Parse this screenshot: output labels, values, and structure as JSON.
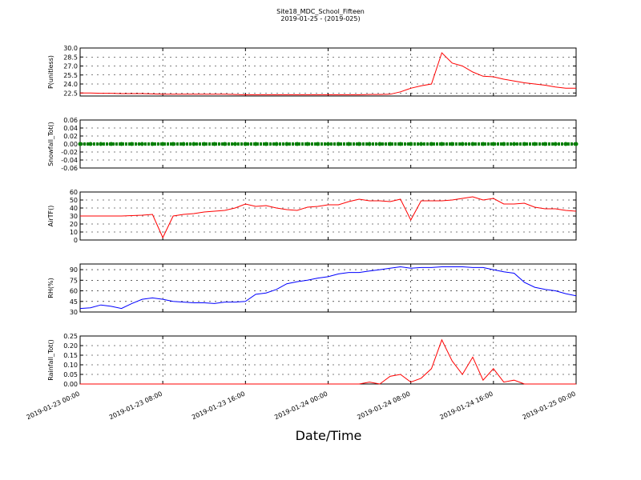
{
  "title": "Site18_MDC_School_Fifteen",
  "subtitle": "2019-01-25 - (2019-025)",
  "xlabel": "Date/Time",
  "chart_data": [
    {
      "type": "line",
      "ylabel": "P(unitless)",
      "color": "#ff0000",
      "ylim": [
        22,
        30
      ],
      "yticks": [
        22.5,
        {
          "value": 24,
          "label": "24.0"
        },
        25.5,
        {
          "value": 27,
          "label": "27.0"
        },
        28.5,
        {
          "value": 30,
          "label": "30.0"
        }
      ],
      "xlim": [
        "2019-01-23 00:00",
        "2019-01-25 00:00"
      ],
      "xticks": [
        "2019-01-23 00:00",
        "2019-01-23 08:00",
        "2019-01-23 16:00",
        "2019-01-24 00:00",
        "2019-01-24 08:00",
        "2019-01-24 16:00",
        "2019-01-25 00:00"
      ],
      "grid": true,
      "x": [
        "2019-01-23 00:00",
        "2019-01-23 01:00",
        "2019-01-23 02:00",
        "2019-01-23 03:00",
        "2019-01-23 04:00",
        "2019-01-23 05:00",
        "2019-01-23 06:00",
        "2019-01-23 07:00",
        "2019-01-23 08:00",
        "2019-01-23 09:00",
        "2019-01-23 10:00",
        "2019-01-23 11:00",
        "2019-01-23 12:00",
        "2019-01-23 13:00",
        "2019-01-23 14:00",
        "2019-01-23 15:00",
        "2019-01-23 16:00",
        "2019-01-23 17:00",
        "2019-01-23 18:00",
        "2019-01-23 19:00",
        "2019-01-23 20:00",
        "2019-01-23 21:00",
        "2019-01-23 22:00",
        "2019-01-23 23:00",
        "2019-01-24 00:00",
        "2019-01-24 01:00",
        "2019-01-24 02:00",
        "2019-01-24 03:00",
        "2019-01-24 04:00",
        "2019-01-24 05:00",
        "2019-01-24 06:00",
        "2019-01-24 07:00",
        "2019-01-24 08:00",
        "2019-01-24 09:00",
        "2019-01-24 10:00",
        "2019-01-24 11:00",
        "2019-01-24 12:00",
        "2019-01-24 13:00",
        "2019-01-24 14:00",
        "2019-01-24 15:00",
        "2019-01-24 16:00",
        "2019-01-24 17:00",
        "2019-01-24 18:00",
        "2019-01-24 19:00",
        "2019-01-24 20:00",
        "2019-01-24 21:00",
        "2019-01-24 22:00",
        "2019-01-24 23:00",
        "2019-01-25 00:00"
      ],
      "values": [
        22.5,
        22.5,
        22.45,
        22.45,
        22.4,
        22.4,
        22.4,
        22.35,
        22.3,
        22.3,
        22.3,
        22.3,
        22.3,
        22.3,
        22.3,
        22.25,
        22.2,
        22.2,
        22.2,
        22.2,
        22.2,
        22.2,
        22.2,
        22.2,
        22.2,
        22.2,
        22.2,
        22.2,
        22.25,
        22.25,
        22.3,
        22.7,
        23.3,
        23.7,
        24.0,
        29.2,
        27.5,
        27.0,
        26.0,
        25.3,
        25.2,
        24.8,
        24.5,
        24.2,
        24.0,
        23.8,
        23.5,
        23.3,
        23.3
      ]
    },
    {
      "type": "scatter",
      "ylabel": "Snowfall_Tot()",
      "color": "#008000",
      "ylim": [
        -0.06,
        0.06
      ],
      "yticks": [
        -0.06,
        -0.04,
        -0.02,
        {
          "value": 0,
          "label": "0.00"
        },
        0.02,
        0.04,
        0.06
      ],
      "xlim": [
        "2019-01-23 00:00",
        "2019-01-25 00:00"
      ],
      "xticks": [
        "2019-01-23 00:00",
        "2019-01-23 08:00",
        "2019-01-23 16:00",
        "2019-01-24 00:00",
        "2019-01-24 08:00",
        "2019-01-24 16:00",
        "2019-01-25 00:00"
      ],
      "grid": true,
      "x": [
        "2019-01-23 00:00",
        "2019-01-23 01:00",
        "2019-01-23 02:00",
        "2019-01-23 03:00",
        "2019-01-23 04:00",
        "2019-01-23 05:00",
        "2019-01-23 06:00",
        "2019-01-23 07:00",
        "2019-01-23 08:00",
        "2019-01-23 09:00",
        "2019-01-23 10:00",
        "2019-01-23 11:00",
        "2019-01-23 12:00",
        "2019-01-23 13:00",
        "2019-01-23 14:00",
        "2019-01-23 15:00",
        "2019-01-23 16:00",
        "2019-01-23 17:00",
        "2019-01-23 18:00",
        "2019-01-23 19:00",
        "2019-01-23 20:00",
        "2019-01-23 21:00",
        "2019-01-23 22:00",
        "2019-01-23 23:00",
        "2019-01-24 00:00",
        "2019-01-24 01:00",
        "2019-01-24 02:00",
        "2019-01-24 03:00",
        "2019-01-24 04:00",
        "2019-01-24 05:00",
        "2019-01-24 06:00",
        "2019-01-24 07:00",
        "2019-01-24 08:00",
        "2019-01-24 09:00",
        "2019-01-24 10:00",
        "2019-01-24 11:00",
        "2019-01-24 12:00",
        "2019-01-24 13:00",
        "2019-01-24 14:00",
        "2019-01-24 15:00",
        "2019-01-24 16:00",
        "2019-01-24 17:00",
        "2019-01-24 18:00",
        "2019-01-24 19:00",
        "2019-01-24 20:00",
        "2019-01-24 21:00",
        "2019-01-24 22:00",
        "2019-01-24 23:00",
        "2019-01-25 00:00"
      ],
      "values": [
        0,
        0,
        0,
        0,
        0,
        0,
        0,
        0,
        0,
        0,
        0,
        0,
        0,
        0,
        0,
        0,
        0,
        0,
        0,
        0,
        0,
        0,
        0,
        0,
        0,
        0,
        0,
        0,
        0,
        0,
        0,
        0,
        0,
        0,
        0,
        0,
        0,
        0,
        0,
        0,
        0,
        0,
        0,
        0,
        0,
        0,
        0,
        0,
        0
      ]
    },
    {
      "type": "line",
      "ylabel": "AirTF()",
      "color": "#ff0000",
      "ylim": [
        0,
        60
      ],
      "yticks": [
        0,
        10,
        20,
        30,
        40,
        50,
        60
      ],
      "xlim": [
        "2019-01-23 00:00",
        "2019-01-25 00:00"
      ],
      "xticks": [
        "2019-01-23 00:00",
        "2019-01-23 08:00",
        "2019-01-23 16:00",
        "2019-01-24 00:00",
        "2019-01-24 08:00",
        "2019-01-24 16:00",
        "2019-01-25 00:00"
      ],
      "grid": true,
      "x": [
        "2019-01-23 00:00",
        "2019-01-23 01:00",
        "2019-01-23 02:00",
        "2019-01-23 03:00",
        "2019-01-23 04:00",
        "2019-01-23 05:00",
        "2019-01-23 06:00",
        "2019-01-23 07:00",
        "2019-01-23 08:00",
        "2019-01-23 09:00",
        "2019-01-23 10:00",
        "2019-01-23 11:00",
        "2019-01-23 12:00",
        "2019-01-23 13:00",
        "2019-01-23 14:00",
        "2019-01-23 15:00",
        "2019-01-23 16:00",
        "2019-01-23 17:00",
        "2019-01-23 18:00",
        "2019-01-23 19:00",
        "2019-01-23 20:00",
        "2019-01-23 21:00",
        "2019-01-23 22:00",
        "2019-01-23 23:00",
        "2019-01-24 00:00",
        "2019-01-24 01:00",
        "2019-01-24 02:00",
        "2019-01-24 03:00",
        "2019-01-24 04:00",
        "2019-01-24 05:00",
        "2019-01-24 06:00",
        "2019-01-24 07:00",
        "2019-01-24 08:00",
        "2019-01-24 09:00",
        "2019-01-24 10:00",
        "2019-01-24 11:00",
        "2019-01-24 12:00",
        "2019-01-24 13:00",
        "2019-01-24 14:00",
        "2019-01-24 15:00",
        "2019-01-24 16:00",
        "2019-01-24 17:00",
        "2019-01-24 18:00",
        "2019-01-24 19:00",
        "2019-01-24 20:00",
        "2019-01-24 21:00",
        "2019-01-24 22:00",
        "2019-01-24 23:00",
        "2019-01-25 00:00"
      ],
      "values": [
        30,
        30,
        30,
        30,
        30,
        30.5,
        31,
        32,
        3,
        30,
        32,
        33,
        35,
        36,
        37,
        40,
        45,
        42,
        43,
        40,
        38,
        37,
        41,
        42,
        44,
        44,
        48,
        51,
        49,
        49,
        48,
        51,
        25,
        49,
        49,
        49,
        50,
        52,
        54,
        50,
        52,
        45,
        45,
        46,
        41,
        39,
        39,
        37,
        36
      ]
    },
    {
      "type": "line",
      "ylabel": "RH(%)",
      "color": "#0000ff",
      "ylim": [
        30,
        98
      ],
      "yticks": [
        30,
        45,
        60,
        75,
        90
      ],
      "xlim": [
        "2019-01-23 00:00",
        "2019-01-25 00:00"
      ],
      "xticks": [
        "2019-01-23 00:00",
        "2019-01-23 08:00",
        "2019-01-23 16:00",
        "2019-01-24 00:00",
        "2019-01-24 08:00",
        "2019-01-24 16:00",
        "2019-01-25 00:00"
      ],
      "grid": true,
      "x": [
        "2019-01-23 00:00",
        "2019-01-23 01:00",
        "2019-01-23 02:00",
        "2019-01-23 03:00",
        "2019-01-23 04:00",
        "2019-01-23 05:00",
        "2019-01-23 06:00",
        "2019-01-23 07:00",
        "2019-01-23 08:00",
        "2019-01-23 09:00",
        "2019-01-23 10:00",
        "2019-01-23 11:00",
        "2019-01-23 12:00",
        "2019-01-23 13:00",
        "2019-01-23 14:00",
        "2019-01-23 15:00",
        "2019-01-23 16:00",
        "2019-01-23 17:00",
        "2019-01-23 18:00",
        "2019-01-23 19:00",
        "2019-01-23 20:00",
        "2019-01-23 21:00",
        "2019-01-23 22:00",
        "2019-01-23 23:00",
        "2019-01-24 00:00",
        "2019-01-24 01:00",
        "2019-01-24 02:00",
        "2019-01-24 03:00",
        "2019-01-24 04:00",
        "2019-01-24 05:00",
        "2019-01-24 06:00",
        "2019-01-24 07:00",
        "2019-01-24 08:00",
        "2019-01-24 09:00",
        "2019-01-24 10:00",
        "2019-01-24 11:00",
        "2019-01-24 12:00",
        "2019-01-24 13:00",
        "2019-01-24 14:00",
        "2019-01-24 15:00",
        "2019-01-24 16:00",
        "2019-01-24 17:00",
        "2019-01-24 18:00",
        "2019-01-24 19:00",
        "2019-01-24 20:00",
        "2019-01-24 21:00",
        "2019-01-24 22:00",
        "2019-01-24 23:00",
        "2019-01-25 00:00"
      ],
      "values": [
        35,
        36,
        40,
        38,
        35,
        42,
        48,
        50,
        48,
        45,
        44,
        43,
        43,
        42,
        44,
        44,
        45,
        55,
        57,
        62,
        70,
        73,
        75,
        78,
        80,
        84,
        86,
        86,
        88,
        90,
        92,
        94,
        92,
        93,
        93,
        94,
        94,
        94,
        93,
        93,
        90,
        87,
        85,
        72,
        65,
        62,
        60,
        56,
        53
      ]
    },
    {
      "type": "line",
      "ylabel": "Rainfall_Tot()",
      "color": "#ff0000",
      "ylim": [
        0,
        0.25
      ],
      "yticks": [
        {
          "value": 0,
          "label": "0.00"
        },
        0.05,
        {
          "value": 0.1,
          "label": "0.10"
        },
        0.15,
        {
          "value": 0.2,
          "label": "0.20"
        },
        0.25
      ],
      "xlim": [
        "2019-01-23 00:00",
        "2019-01-25 00:00"
      ],
      "xticks": [
        "2019-01-23 00:00",
        "2019-01-23 08:00",
        "2019-01-23 16:00",
        "2019-01-24 00:00",
        "2019-01-24 08:00",
        "2019-01-24 16:00",
        "2019-01-25 00:00"
      ],
      "grid": true,
      "xtick_labels": true,
      "x": [
        "2019-01-23 00:00",
        "2019-01-23 01:00",
        "2019-01-23 02:00",
        "2019-01-23 03:00",
        "2019-01-23 04:00",
        "2019-01-23 05:00",
        "2019-01-23 06:00",
        "2019-01-23 07:00",
        "2019-01-23 08:00",
        "2019-01-23 09:00",
        "2019-01-23 10:00",
        "2019-01-23 11:00",
        "2019-01-23 12:00",
        "2019-01-23 13:00",
        "2019-01-23 14:00",
        "2019-01-23 15:00",
        "2019-01-23 16:00",
        "2019-01-23 17:00",
        "2019-01-23 18:00",
        "2019-01-23 19:00",
        "2019-01-23 20:00",
        "2019-01-23 21:00",
        "2019-01-23 22:00",
        "2019-01-23 23:00",
        "2019-01-24 00:00",
        "2019-01-24 01:00",
        "2019-01-24 02:00",
        "2019-01-24 03:00",
        "2019-01-24 04:00",
        "2019-01-24 05:00",
        "2019-01-24 06:00",
        "2019-01-24 07:00",
        "2019-01-24 08:00",
        "2019-01-24 09:00",
        "2019-01-24 10:00",
        "2019-01-24 11:00",
        "2019-01-24 12:00",
        "2019-01-24 13:00",
        "2019-01-24 14:00",
        "2019-01-24 15:00",
        "2019-01-24 16:00",
        "2019-01-24 17:00",
        "2019-01-24 18:00",
        "2019-01-24 19:00",
        "2019-01-24 20:00",
        "2019-01-24 21:00",
        "2019-01-24 22:00",
        "2019-01-24 23:00",
        "2019-01-25 00:00"
      ],
      "values": [
        0,
        0,
        0,
        0,
        0,
        0,
        0,
        0,
        0,
        0,
        0,
        0,
        0,
        0,
        0,
        0,
        0,
        0,
        0,
        0,
        0,
        0,
        0,
        0,
        0,
        0,
        0,
        0,
        0.01,
        0,
        0.04,
        0.05,
        0.01,
        0.03,
        0.08,
        0.23,
        0.12,
        0.05,
        0.14,
        0.02,
        0.08,
        0.01,
        0.02,
        0,
        0,
        0,
        0,
        0,
        0
      ]
    }
  ]
}
